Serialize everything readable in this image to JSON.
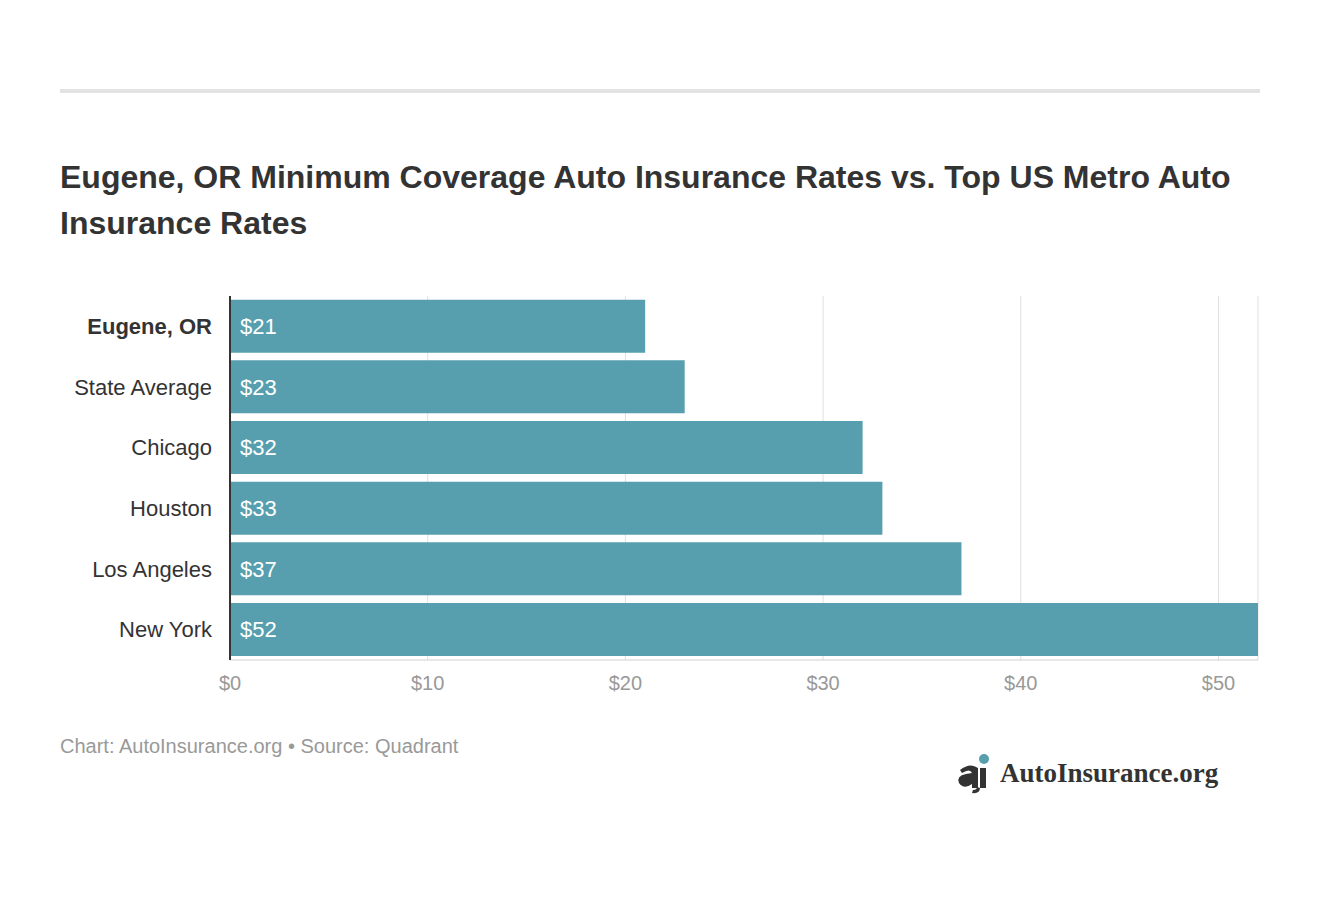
{
  "chart_data": {
    "type": "bar",
    "title": "Eugene, OR Minimum Coverage Auto Insurance Rates vs. Top US Metro Auto Insurance Rates",
    "categories": [
      "Eugene, OR",
      "State Average",
      "Chicago",
      "Houston",
      "Los Angeles",
      "New York"
    ],
    "values": [
      21,
      23,
      32,
      33,
      37,
      52
    ],
    "value_labels": [
      "$21",
      "$23",
      "$32",
      "$33",
      "$37",
      "$52"
    ],
    "color": "#579fae",
    "orientation": "horizontal",
    "data_labels": true,
    "grid": true,
    "xlim": [
      0,
      52
    ],
    "xticks": [
      {
        "value": 0,
        "label": "$0"
      },
      {
        "value": 10,
        "label": "$10"
      },
      {
        "value": 20,
        "label": "$20"
      },
      {
        "value": 30,
        "label": "$30"
      },
      {
        "value": 40,
        "label": "$40"
      },
      {
        "value": 50,
        "label": "$50"
      }
    ],
    "annotations": [
      "Chart: AutoInsurance.org • Source: Quadrant",
      "AutoInsurance.org"
    ]
  }
}
